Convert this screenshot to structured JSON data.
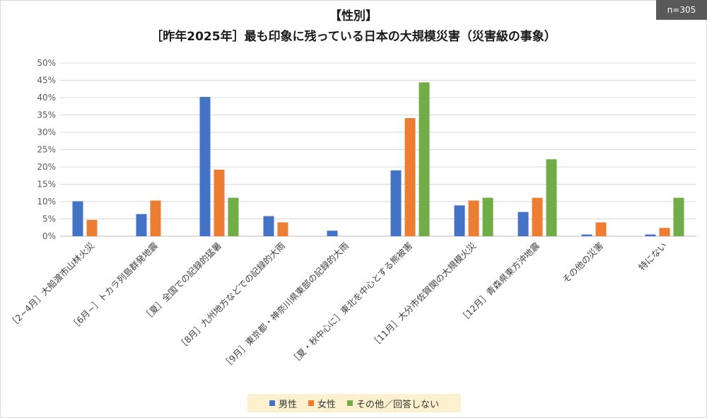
{
  "badge": "n=305",
  "title_line1": "【性別】",
  "title_line2": "［昨年2025年］最も印象に残っている日本の大規模災害（災害級の事象）",
  "chart_data": {
    "type": "bar",
    "categories": [
      "［2~4月］大船渡市山林火災",
      "［6月~］トカラ列島群発地震",
      "［夏］全国での記録的猛暑",
      "［8月］九州地方などでの記録的大雨",
      "［9月］東京都・神奈川県東部の記録的大雨",
      "［夏・秋中心に］東北を中心とする熊被害",
      "［11月］大分市佐賀関の大規模火災",
      "［12月］青森県東方沖地震",
      "その他の災害",
      "特にない"
    ],
    "series": [
      {
        "name": "男性",
        "color": "#4472c4",
        "values": [
          10.1,
          6.4,
          40.2,
          5.8,
          1.6,
          19.0,
          8.9,
          7.0,
          0.5,
          0.5
        ]
      },
      {
        "name": "女性",
        "color": "#ed7d31",
        "values": [
          4.7,
          10.3,
          19.2,
          4.0,
          0,
          34.1,
          10.3,
          11.1,
          4.0,
          2.4
        ]
      },
      {
        "name": "その他／回答しない",
        "color": "#70ad47",
        "values": [
          0,
          0,
          11.1,
          0,
          0,
          44.4,
          11.1,
          22.2,
          0,
          11.1
        ]
      }
    ],
    "y_ticks": [
      "0%",
      "5%",
      "10%",
      "15%",
      "20%",
      "25%",
      "30%",
      "35%",
      "40%",
      "45%",
      "50%"
    ],
    "ylim": [
      0,
      50
    ],
    "grid": true,
    "legend_position": "bottom"
  }
}
